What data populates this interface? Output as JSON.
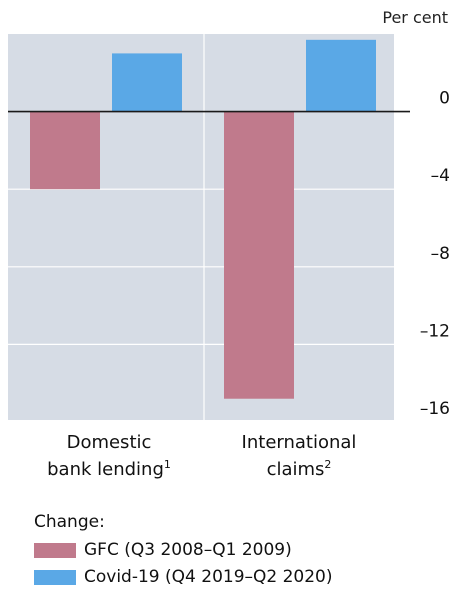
{
  "chart_data": {
    "type": "bar",
    "unit_label": "Per cent",
    "categories": [
      {
        "label_line1": "Domestic",
        "label_line2": "bank lending",
        "footnote": "1"
      },
      {
        "label_line1": "International",
        "label_line2": "claims",
        "footnote": "2"
      }
    ],
    "series": [
      {
        "name": "GFC (Q3 2008–Q1 2009)",
        "color": "#c07a8c",
        "values": [
          -4.0,
          -14.8
        ]
      },
      {
        "name": "Covid-19 (Q4 2019–Q2 2020)",
        "color": "#5aa8e6",
        "values": [
          3.0,
          3.7
        ]
      }
    ],
    "y_ticks": [
      "0",
      "–4",
      "–8",
      "–12",
      "–16"
    ],
    "y_tick_values": [
      0,
      -4,
      -8,
      -12,
      -16
    ],
    "ylim": [
      -16,
      4
    ],
    "grid": true,
    "legend_position": "bottom-left"
  },
  "legend": {
    "title": "Change:"
  }
}
